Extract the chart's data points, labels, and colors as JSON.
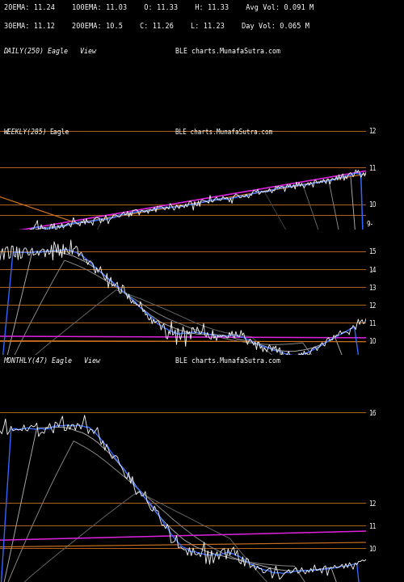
{
  "bg_color": "#000000",
  "text_color": "#ffffff",
  "orange_color": "#c87020",
  "blue_color": "#3366ff",
  "magenta_color": "#dd22dd",
  "gray1_color": "#aaaaaa",
  "gray2_color": "#888888",
  "gray3_color": "#666666",
  "gray4_color": "#444444",
  "header_line1": "20EMA: 11.24    100EMA: 11.03    O: 11.33    H: 11.33    Avg Vol: 0.091 M",
  "header_line2": "30EMA: 11.12    200EMA: 10.5    C: 11.26    L: 11.23    Day Vol: 0.065 M",
  "daily_label": "DAILY(250) Eagle   View",
  "ble_label": "BLE charts.MunafaSutra.com",
  "weekly_label": "WEEKLY(285)",
  "weekly_eagle": "Eagle",
  "monthly_label": "MONTHLY(47) Eagle   View",
  "monthly_ble": "BLE charts.MunafaSutra.com"
}
